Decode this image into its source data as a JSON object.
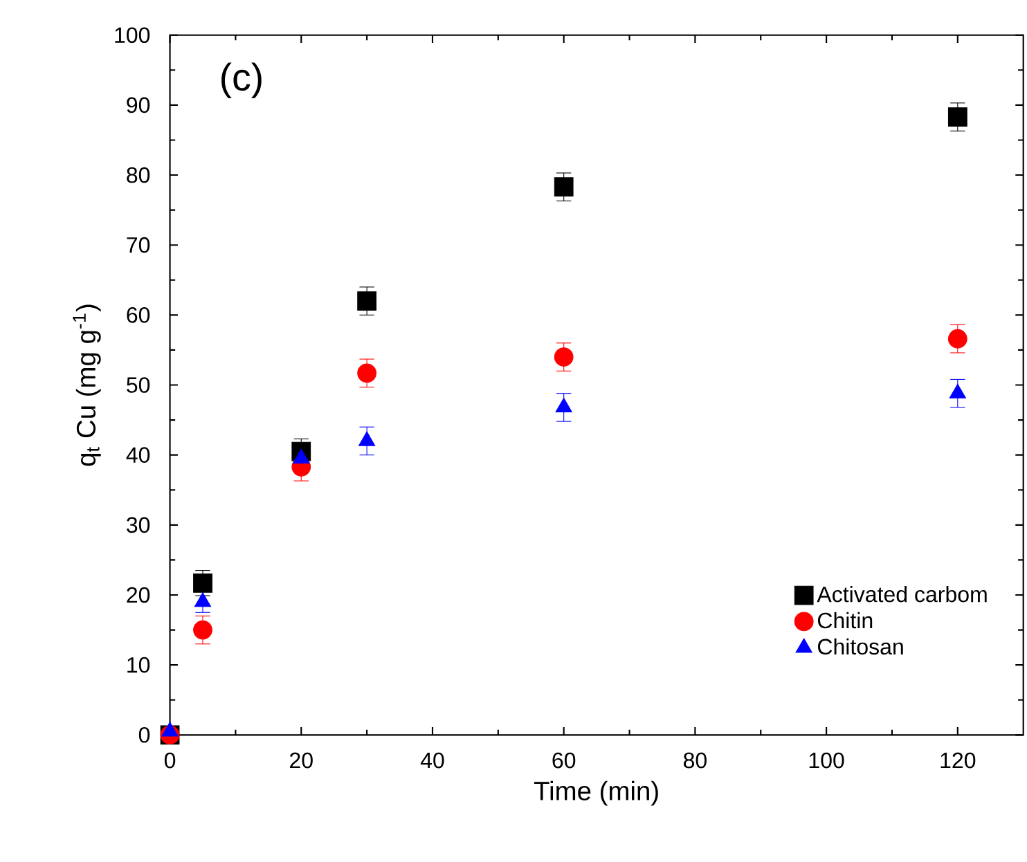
{
  "chart_data": {
    "type": "scatter",
    "xlabel": "Time (min)",
    "ylabel": "q$_{t}$ Cu (mg g$^{-1}$)",
    "xlim": [
      0,
      130
    ],
    "xticks": [
      0,
      20,
      40,
      60,
      80,
      100,
      120
    ],
    "ylim": [
      0,
      100
    ],
    "yticks": [
      0,
      10,
      20,
      30,
      40,
      50,
      60,
      70,
      80,
      90,
      100
    ],
    "grid": false,
    "legend": "bottom right",
    "annotations": [
      "(c)"
    ],
    "series": [
      {
        "name": "Activated carbom",
        "color": "#000000",
        "marker": "square",
        "x": [
          0,
          5,
          20,
          30,
          60,
          120
        ],
        "values": [
          0,
          21.7,
          40.5,
          62,
          78.3,
          88.3
        ],
        "errors": [
          null,
          1.8,
          1.8,
          2,
          2,
          2
        ]
      },
      {
        "name": "Chitin",
        "color": "#ff0000",
        "marker": "circle",
        "x": [
          0,
          5,
          20,
          30,
          60,
          120
        ],
        "values": [
          0,
          15,
          38.3,
          51.7,
          54,
          56.6
        ],
        "errors": [
          null,
          2,
          2,
          2,
          2,
          2
        ]
      },
      {
        "name": "Chitosan",
        "color": "#0000ff",
        "marker": "triangle",
        "x": [
          0,
          5,
          20,
          30,
          60,
          120
        ],
        "values": [
          0.5,
          19,
          39.5,
          42,
          46.8,
          48.8
        ],
        "errors": [
          null,
          1.5,
          1.5,
          2,
          2,
          2
        ]
      }
    ]
  }
}
